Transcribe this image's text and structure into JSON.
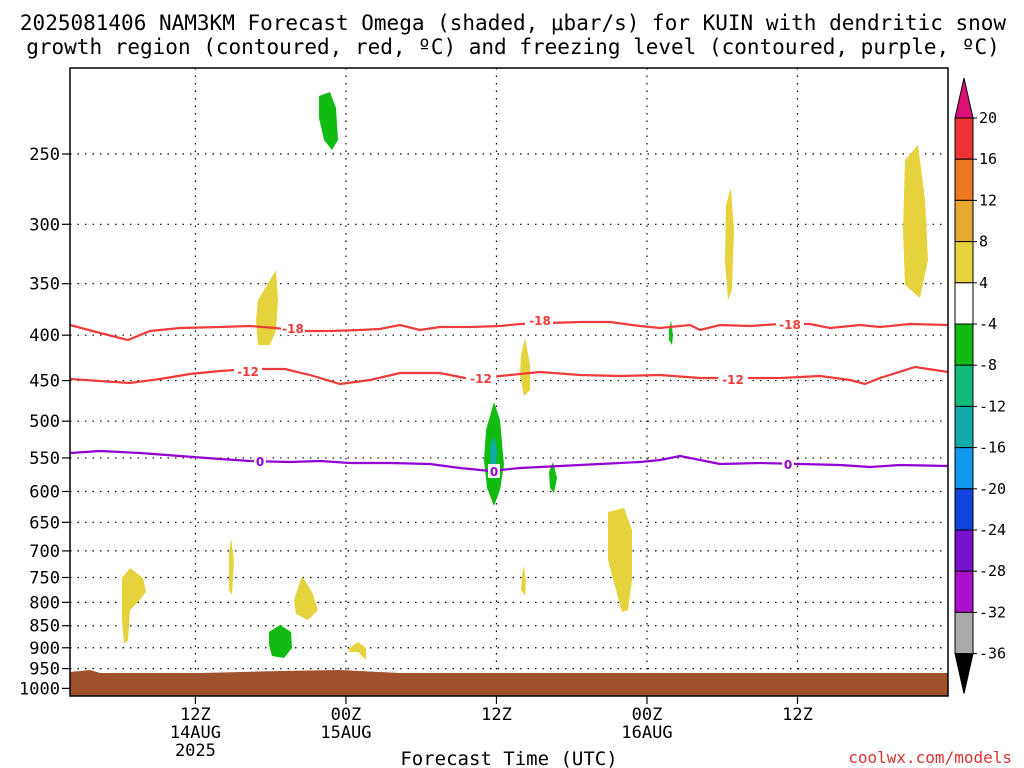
{
  "title": {
    "line1": "2025081406 NAM3KM Forecast Omega (shaded, μbar/s) for KUIN with dendritic snow",
    "line2": "growth region (contoured, red, ºC) and freezing level (contoured, purple, ºC)"
  },
  "xlabel": "Forecast Time (UTC)",
  "watermark": "coolwx.com/models",
  "chart_data": {
    "type": "heatmap",
    "y_axis": {
      "scale": "log-pressure",
      "reversed": true,
      "range_hpa": [
        200,
        1020
      ],
      "ticks": [
        "250",
        "300",
        "350",
        "400",
        "450",
        "500",
        "550",
        "600",
        "650",
        "700",
        "750",
        "800",
        "850",
        "900",
        "950",
        "1000"
      ],
      "tick_values": [
        250,
        300,
        350,
        400,
        450,
        500,
        550,
        600,
        650,
        700,
        750,
        800,
        850,
        900,
        950,
        1000
      ],
      "grid": "dotted"
    },
    "x_axis": {
      "range_hours": [
        -10,
        60
      ],
      "ticks": [
        {
          "hour": 0,
          "lines": [
            "12Z",
            "14AUG",
            "2025"
          ]
        },
        {
          "hour": 12,
          "lines": [
            "00Z",
            "15AUG"
          ]
        },
        {
          "hour": 24,
          "lines": [
            "12Z"
          ]
        },
        {
          "hour": 36,
          "lines": [
            "00Z",
            "16AUG"
          ]
        },
        {
          "hour": 48,
          "lines": [
            "12Z"
          ]
        }
      ],
      "grid": "dotted"
    },
    "contours": [
      {
        "value": "-18",
        "color": "#ee3b3b"
      },
      {
        "value": "-12",
        "color": "#ee3b3b"
      },
      {
        "value": "0",
        "color": "#9400d3"
      }
    ],
    "colorbar": {
      "labels": [
        "20",
        "16",
        "12",
        "8",
        "4",
        "-4",
        "-8",
        "-12",
        "-16",
        "-20",
        "-24",
        "-28",
        "-32",
        "-36"
      ],
      "colors": [
        "#dd1177",
        "#ee3333",
        "#ee7722",
        "#e6a830",
        "#e6d23c",
        "#ffffff",
        "#11bb11",
        "#11bb77",
        "#11aaaa",
        "#1199ee",
        "#1144dd",
        "#7711cc",
        "#aa11cc",
        "#aaaaaa",
        "#000000"
      ]
    },
    "surface_color": "#a0522d"
  }
}
